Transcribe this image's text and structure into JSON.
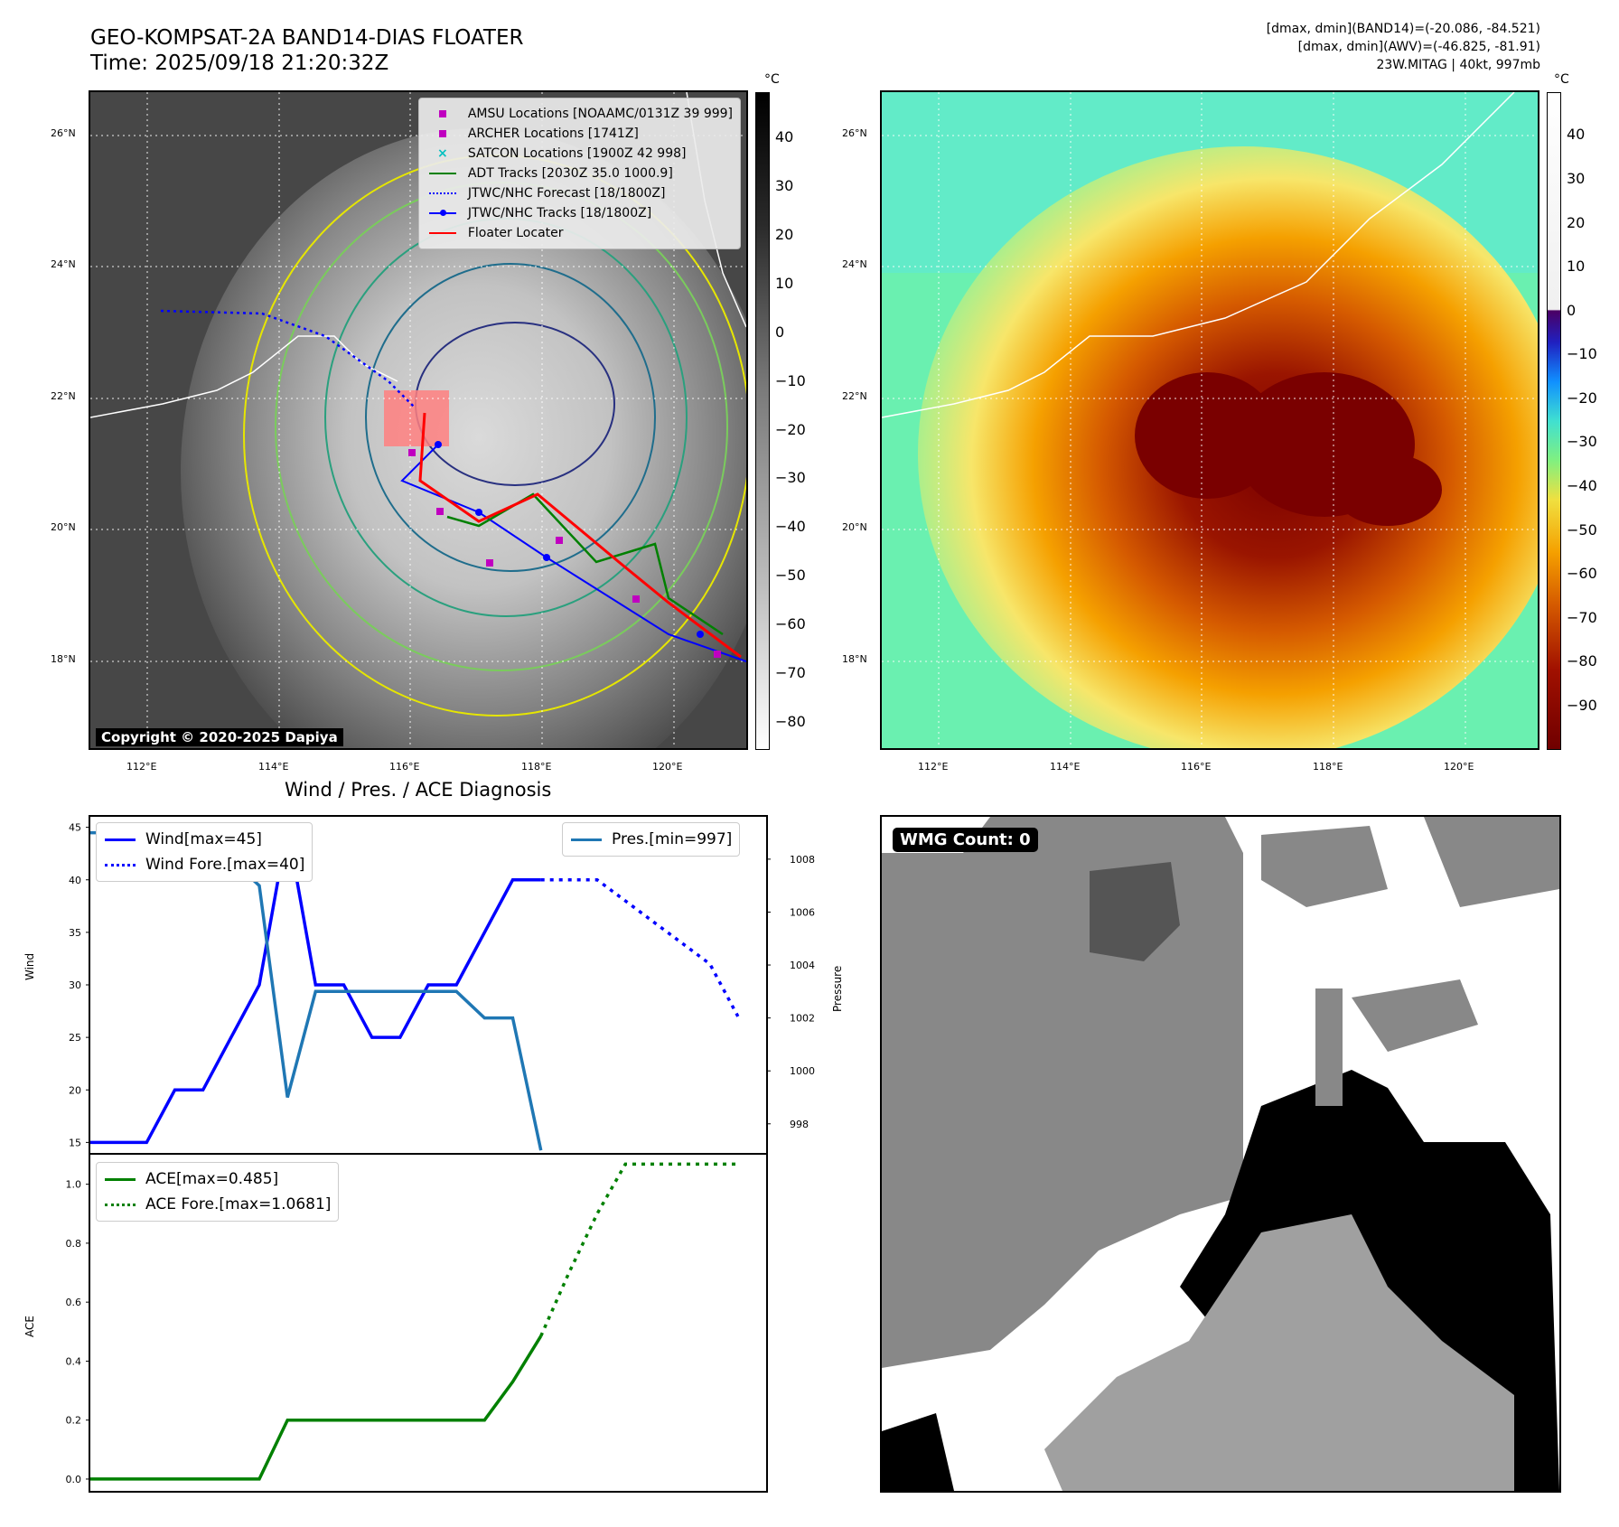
{
  "header": {
    "title_line1": "GEO-KOMPSAT-2A BAND14-DIAS FLOATER",
    "title_line2": "Time: 2025/09/18 21:20:32Z",
    "meta_line1": "[dmax, dmin](BAND14)=(-20.086, -84.521)",
    "meta_line2": "[dmax, dmin](AWV)=(-46.825, -81.91)",
    "meta_line3": "23W.MITAG | 40kt, 997mb"
  },
  "map_axes": {
    "lat_labels": [
      "26°N",
      "24°N",
      "22°N",
      "20°N",
      "18°N"
    ],
    "lon_labels": [
      "112°E",
      "114°E",
      "116°E",
      "118°E",
      "120°E"
    ]
  },
  "ir_panel": {
    "colorbar_unit": "°C",
    "colorbar_ticks": [
      "40",
      "30",
      "20",
      "10",
      "0",
      "−10",
      "−20",
      "−30",
      "−40",
      "−50",
      "−60",
      "−70",
      "−80"
    ],
    "copyright": "Copyright © 2020-2025 Dapiya",
    "legend": [
      {
        "label": "AMSU Locations [NOAAMC/0131Z 39 999]",
        "marker": "square",
        "color": "#c000c0"
      },
      {
        "label": "ARCHER Locations [1741Z]",
        "marker": "square",
        "color": "#c000c0"
      },
      {
        "label": "SATCON Locations [1900Z 42 998]",
        "marker": "x",
        "color": "#00c0c0"
      },
      {
        "label": "ADT Tracks [2030Z 35.0 1000.9]",
        "marker": "line",
        "color": "#008000"
      },
      {
        "label": "JTWC/NHC Forecast [18/1800Z]",
        "marker": "dotted",
        "color": "#0000ff"
      },
      {
        "label": "JTWC/NHC Tracks [18/1800Z]",
        "marker": "line-dot",
        "color": "#0000ff"
      },
      {
        "label": "Floater Locater",
        "marker": "line",
        "color": "#ff0000"
      }
    ]
  },
  "awv_panel": {
    "colorbar_unit": "°C",
    "colorbar_ticks": [
      "40",
      "30",
      "20",
      "10",
      "0",
      "−10",
      "−20",
      "−30",
      "−40",
      "−50",
      "−60",
      "−70",
      "−80",
      "−90"
    ]
  },
  "wmg_panel": {
    "label": "WMG Count: 0"
  },
  "chart_data": [
    {
      "type": "line",
      "title": "Wind / Pres. / ACE Diagnosis",
      "ylabel": "Wind",
      "y2label": "Pressure",
      "ylim": [
        14,
        46
      ],
      "y2lim": [
        996.9,
        1009.6
      ],
      "yticks": [
        15,
        20,
        25,
        30,
        35,
        40,
        45
      ],
      "y2ticks": [
        998,
        1000,
        1002,
        1004,
        1006,
        1008
      ],
      "series": [
        {
          "name": "Wind[max=45]",
          "color": "#0000ff",
          "style": "solid",
          "x": [
            0,
            1,
            2,
            3,
            4,
            5,
            6,
            7,
            8,
            9,
            10,
            11,
            12,
            13,
            14,
            15,
            16
          ],
          "values": [
            15,
            15,
            15,
            20,
            20,
            25,
            30,
            45,
            30,
            30,
            25,
            25,
            30,
            30,
            35,
            40,
            40
          ]
        },
        {
          "name": "Wind Fore.[max=40]",
          "color": "#0000ff",
          "style": "dotted",
          "x": [
            16,
            17,
            18,
            19,
            20,
            21,
            22,
            23
          ],
          "values": [
            40,
            40,
            40,
            38,
            36,
            34,
            32,
            27
          ]
        },
        {
          "name": "Pres.[min=997]",
          "color": "#1f77b4",
          "style": "solid",
          "axis": "right",
          "x": [
            0,
            1,
            2,
            3,
            4,
            5,
            6,
            7,
            8,
            9,
            10,
            11,
            12,
            13,
            14,
            15,
            16
          ],
          "values": [
            1009,
            1009,
            1008,
            1008,
            1008,
            1008,
            1007,
            999,
            1003,
            1003,
            1003,
            1003,
            1003,
            1003,
            1002,
            1002,
            997
          ]
        }
      ]
    },
    {
      "type": "line",
      "ylabel": "ACE",
      "ylim": [
        -0.04,
        1.1
      ],
      "yticks": [
        0.0,
        0.2,
        0.4,
        0.6,
        0.8,
        1.0
      ],
      "series": [
        {
          "name": "ACE[max=0.485]",
          "color": "#008000",
          "style": "solid",
          "x": [
            0,
            1,
            2,
            3,
            4,
            5,
            6,
            7,
            8,
            9,
            10,
            11,
            12,
            13,
            14,
            15,
            16
          ],
          "values": [
            0,
            0,
            0,
            0,
            0,
            0,
            0,
            0.2,
            0.2,
            0.2,
            0.2,
            0.2,
            0.2,
            0.2,
            0.2,
            0.33,
            0.485
          ]
        },
        {
          "name": "ACE Fore.[max=1.0681]",
          "color": "#008000",
          "style": "dotted",
          "x": [
            16,
            17,
            18,
            19,
            20,
            21,
            22,
            23
          ],
          "values": [
            0.485,
            0.7,
            0.9,
            1.0681,
            1.0681,
            1.0681,
            1.0681,
            1.0681
          ]
        }
      ]
    }
  ]
}
